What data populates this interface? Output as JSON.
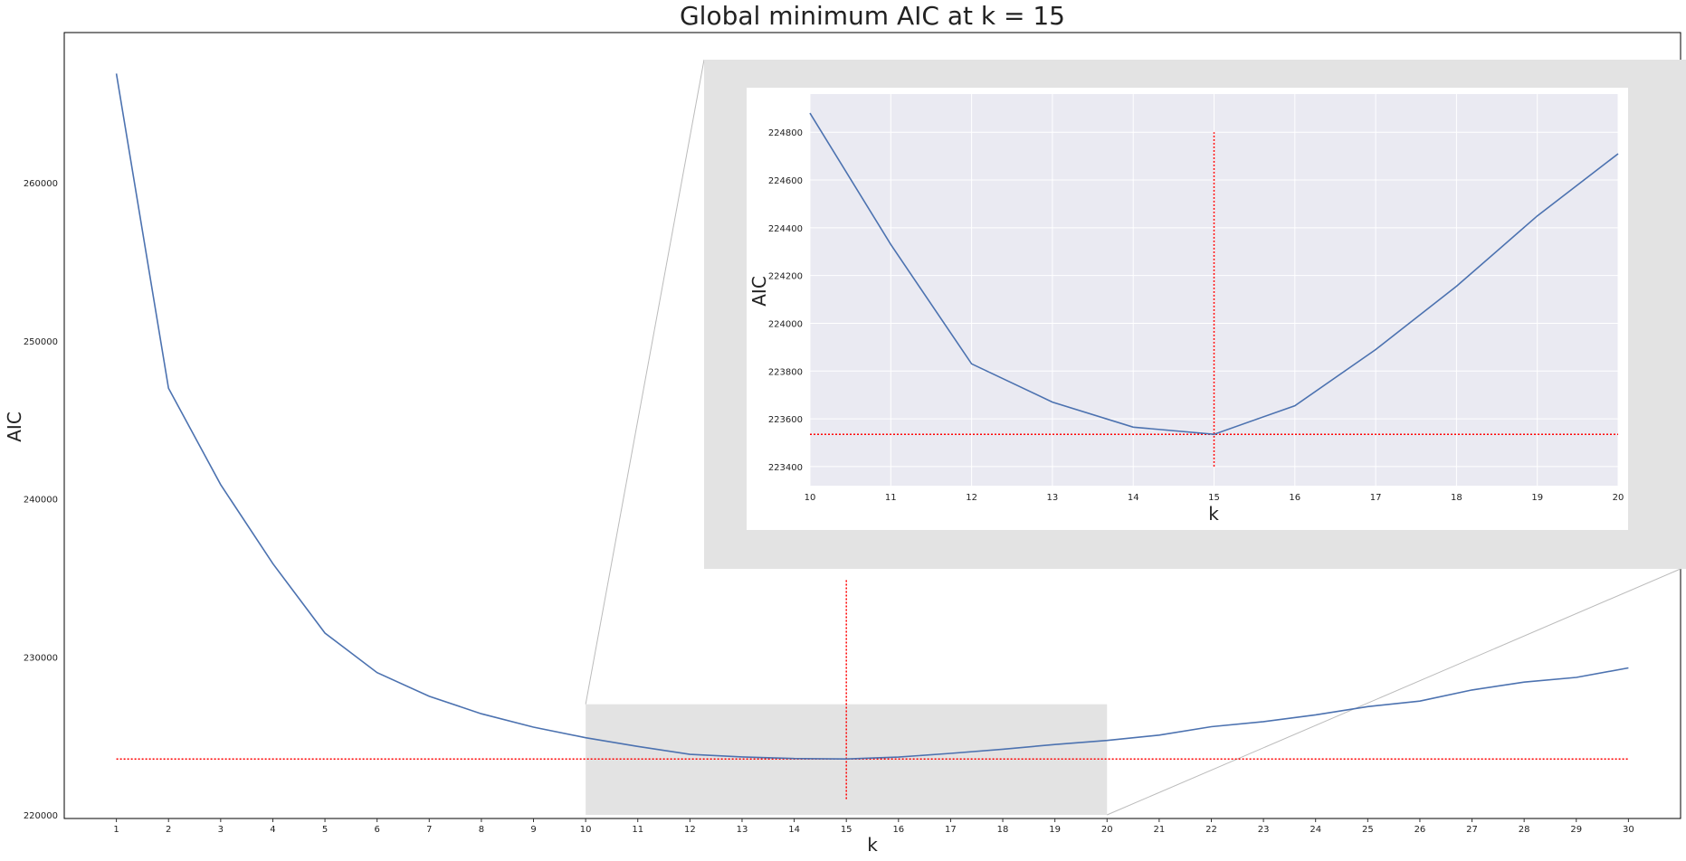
{
  "chart_data": [
    {
      "type": "line",
      "title": "Global minimum AIC at k = 15",
      "xlabel": "k",
      "ylabel": "AIC",
      "xlim": [
        0,
        31
      ],
      "ylim": [
        220000,
        269500
      ],
      "x_ticks": [
        1,
        2,
        3,
        4,
        5,
        6,
        7,
        8,
        9,
        10,
        11,
        12,
        13,
        14,
        15,
        16,
        17,
        18,
        19,
        20,
        21,
        22,
        23,
        24,
        25,
        26,
        27,
        28,
        29,
        30
      ],
      "y_ticks": [
        220000,
        230000,
        240000,
        250000,
        260000
      ],
      "grid": false,
      "series": [
        {
          "color": "#4c72b0",
          "x": [
            1,
            2,
            3,
            4,
            5,
            6,
            7,
            8,
            9,
            10,
            11,
            12,
            13,
            14,
            15,
            16,
            17,
            18,
            19,
            20,
            21,
            22,
            23,
            24,
            25,
            26,
            27,
            28,
            29,
            30
          ],
          "y": [
            266900,
            247000,
            240900,
            235900,
            231500,
            229000,
            227500,
            226400,
            225550,
            224880,
            224330,
            223830,
            223670,
            223565,
            223535,
            223655,
            223890,
            224155,
            224450,
            224710,
            225050,
            225580,
            225900,
            226330,
            226850,
            227200,
            227900,
            228400,
            228700,
            229300
          ]
        }
      ],
      "reference_lines": {
        "color": "#ff0000",
        "style": "dotted",
        "x": 15,
        "y": 223535
      },
      "zoom_region": {
        "x": [
          10,
          20
        ],
        "y": [
          220000,
          227000
        ],
        "fill": "#e3e3e3"
      }
    },
    {
      "type": "line",
      "xlabel": "k",
      "ylabel": "AIC",
      "xlim": [
        10,
        20
      ],
      "ylim": [
        223320,
        224960
      ],
      "x_ticks": [
        10,
        11,
        12,
        13,
        14,
        15,
        16,
        17,
        18,
        19,
        20
      ],
      "y_ticks": [
        223400,
        223600,
        223800,
        224000,
        224200,
        224400,
        224600,
        224800
      ],
      "grid": true,
      "background": "#eaeaf2",
      "series": [
        {
          "color": "#4c72b0",
          "x": [
            10,
            11,
            12,
            13,
            14,
            15,
            16,
            17,
            18,
            19,
            20
          ],
          "y": [
            224880,
            224330,
            223830,
            223670,
            223565,
            223535,
            223655,
            223890,
            224155,
            224450,
            224710
          ]
        }
      ],
      "reference_lines": {
        "color": "#ff0000",
        "style": "dotted",
        "x": 15,
        "y": 223535,
        "x_span": [
          223400,
          224800
        ]
      }
    }
  ]
}
